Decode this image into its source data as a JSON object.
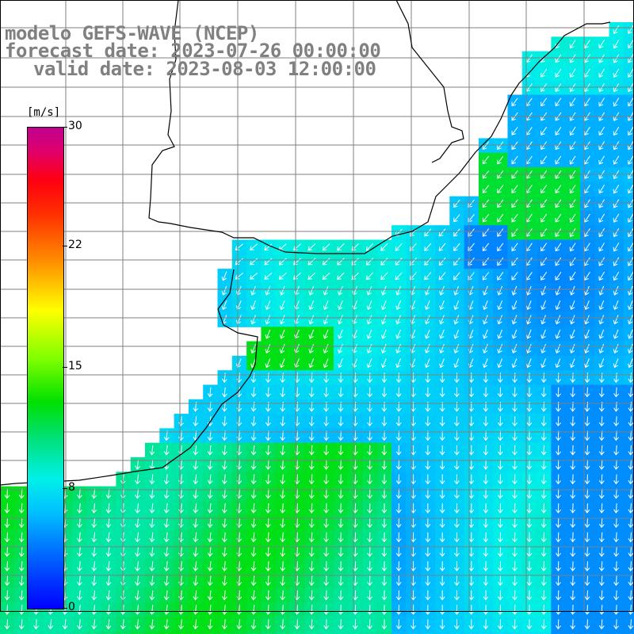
{
  "header": {
    "model_line": "modelo GEFS-WAVE (NCEP)",
    "forecast_line": "forecast date: 2023-07-26 00:00:00",
    "valid_line": "valid date: 2023-08-03 12:00:00"
  },
  "colorbar": {
    "unit": "[m/s]",
    "ticks": [
      "30",
      "22",
      "15",
      "8",
      "0"
    ],
    "range": [
      0,
      30
    ]
  },
  "map": {
    "land_color": "#ffffff",
    "grid_color": "#808080",
    "coastline_color": "#000000",
    "arrow_color": "#ffffff",
    "field": "wind speed with wind direction vectors"
  }
}
